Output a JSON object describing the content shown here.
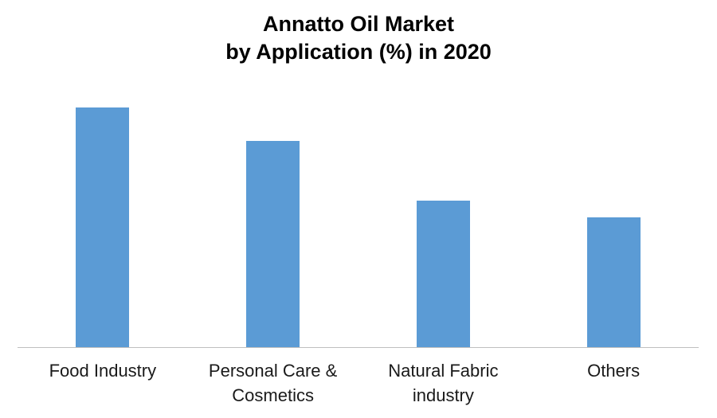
{
  "chart_data": {
    "type": "bar",
    "title": "Annatto Oil Market by Application (%) in 2020",
    "title_lines": [
      "Annatto Oil Market",
      "by Application (%) in 2020"
    ],
    "categories": [
      "Food Industry",
      "Personal Care & Cosmetics",
      "Natural Fabric industry",
      "Others"
    ],
    "values": [
      33.2,
      28.5,
      20.3,
      18.0
    ],
    "unit": "%",
    "xlabel": "",
    "ylabel": "",
    "ylim": [
      0,
      37
    ],
    "grid": false,
    "legend": false,
    "value_labels_shown": false,
    "bar_color": "#5B9BD5",
    "axis_line_color": "#BFBFBF",
    "title_color": "#000000",
    "label_color": "#1a1a1a",
    "background_color": "#ffffff"
  }
}
